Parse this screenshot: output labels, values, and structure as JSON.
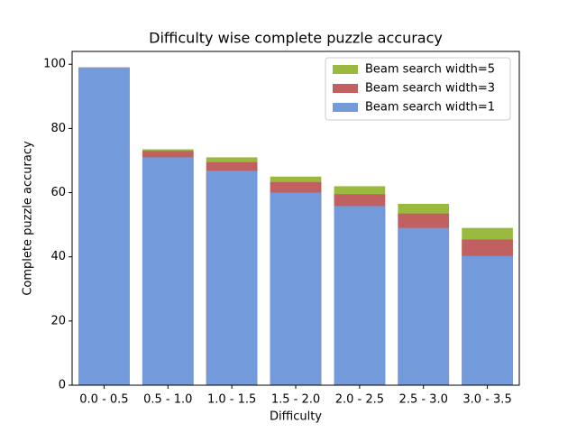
{
  "chart_data": {
    "type": "bar",
    "title": "Difficulty wise complete puzzle accuracy",
    "xlabel": "Difficulty",
    "ylabel": "Complete puzzle accuracy",
    "categories": [
      "0.0 - 0.5",
      "0.5 - 1.0",
      "1.0 - 1.5",
      "1.5 - 2.0",
      "2.0 - 2.5",
      "2.5 - 3.0",
      "3.0 - 3.5"
    ],
    "series": [
      {
        "name": "Beam search width=5",
        "color": "#9aba3f",
        "values": [
          99,
          73.5,
          71,
          65,
          62,
          56.5,
          49
        ]
      },
      {
        "name": "Beam search width=3",
        "color": "#c06060",
        "values": [
          99,
          73,
          69.5,
          63.3,
          59.5,
          53.5,
          45.4
        ]
      },
      {
        "name": "Beam search width=1",
        "color": "#739bdc",
        "values": [
          99,
          71,
          66.8,
          60,
          55.8,
          49,
          40.3
        ]
      }
    ],
    "ylim": [
      0,
      104
    ],
    "yticks": [
      0,
      20,
      40,
      60,
      80,
      100
    ],
    "legend": "upper right",
    "grid": false
  }
}
